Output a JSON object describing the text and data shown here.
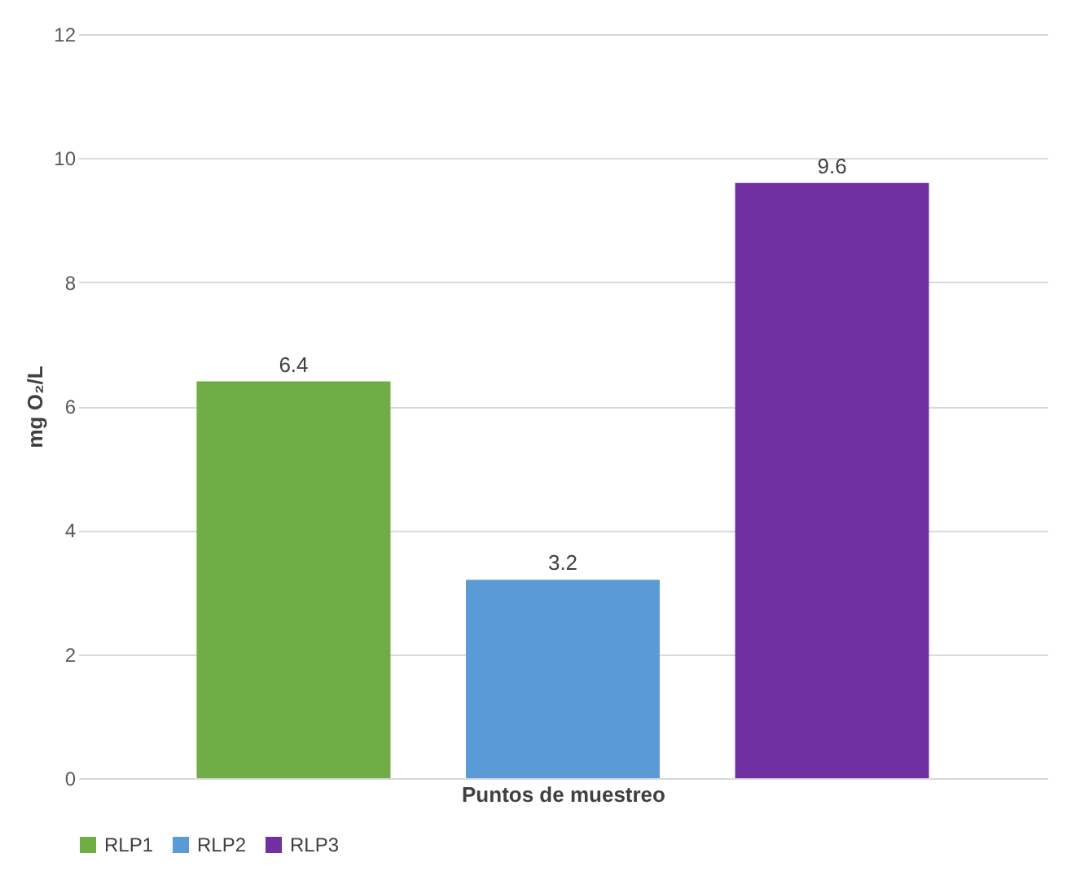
{
  "chart_data": {
    "type": "bar",
    "xlabel": "Puntos de muestreo",
    "ylabel": "mg O₂/L",
    "categories": [
      null
    ],
    "series": [
      {
        "name": "RLP1",
        "color": "#70ad47",
        "values": [
          6.4
        ]
      },
      {
        "name": "RLP2",
        "color": "#5b9bd5",
        "values": [
          3.2
        ]
      },
      {
        "name": "RLP3",
        "color": "#7030a0",
        "values": [
          9.6
        ]
      }
    ],
    "ylim": [
      0,
      12
    ],
    "yticks": [
      0,
      2,
      4,
      6,
      8,
      10,
      12
    ],
    "grid": "y",
    "legend": "bottom",
    "data_labels": true
  }
}
